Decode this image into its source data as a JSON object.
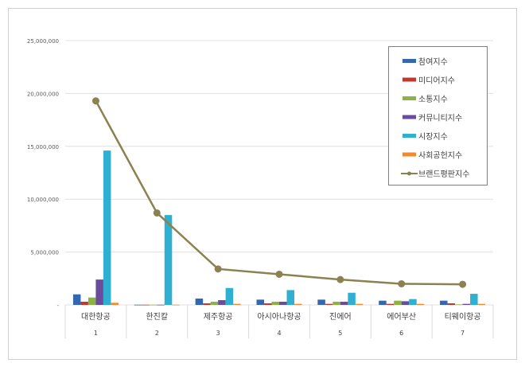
{
  "chart_data": {
    "type": "bar",
    "title": "",
    "xlabel": "",
    "ylabel": "",
    "ylim": [
      0,
      25000000
    ],
    "yticks": [
      0,
      5000000,
      10000000,
      15000000,
      20000000,
      25000000
    ],
    "ytick_labels": [
      "-",
      "5,000,000",
      "10,000,000",
      "15,000,000",
      "20,000,000",
      "25,000,000"
    ],
    "grid": true,
    "legend_position": "top-right",
    "categories": [
      "대한항공",
      "한진칼",
      "제주항공",
      "아시아나항공",
      "진에어",
      "에어부산",
      "티웨이항공"
    ],
    "ranks": [
      "1",
      "2",
      "3",
      "4",
      "5",
      "6",
      "7"
    ],
    "series": [
      {
        "name": "참여지수",
        "kind": "bar",
        "color": "#3566b0",
        "values": [
          1000000,
          20000,
          600000,
          500000,
          500000,
          400000,
          400000
        ]
      },
      {
        "name": "미디어지수",
        "kind": "bar",
        "color": "#c0392f",
        "values": [
          300000,
          20000,
          150000,
          150000,
          100000,
          100000,
          150000
        ]
      },
      {
        "name": "소통지수",
        "kind": "bar",
        "color": "#8db246",
        "values": [
          700000,
          20000,
          300000,
          300000,
          300000,
          400000,
          50000
        ]
      },
      {
        "name": "커뮤니티지수",
        "kind": "bar",
        "color": "#6a4b9c",
        "values": [
          2400000,
          20000,
          450000,
          300000,
          300000,
          350000,
          100000
        ]
      },
      {
        "name": "시장지수",
        "kind": "bar",
        "color": "#2fb0d0",
        "values": [
          14600000,
          8500000,
          1600000,
          1400000,
          1150000,
          550000,
          1050000
        ]
      },
      {
        "name": "사회공헌지수",
        "kind": "bar",
        "color": "#f08a2c",
        "values": [
          200000,
          20000,
          100000,
          100000,
          100000,
          100000,
          100000
        ]
      },
      {
        "name": "브랜드평판지수",
        "kind": "line",
        "color": "#8c8150",
        "values": [
          19300000,
          8700000,
          3400000,
          2900000,
          2400000,
          2000000,
          1950000
        ]
      }
    ]
  }
}
